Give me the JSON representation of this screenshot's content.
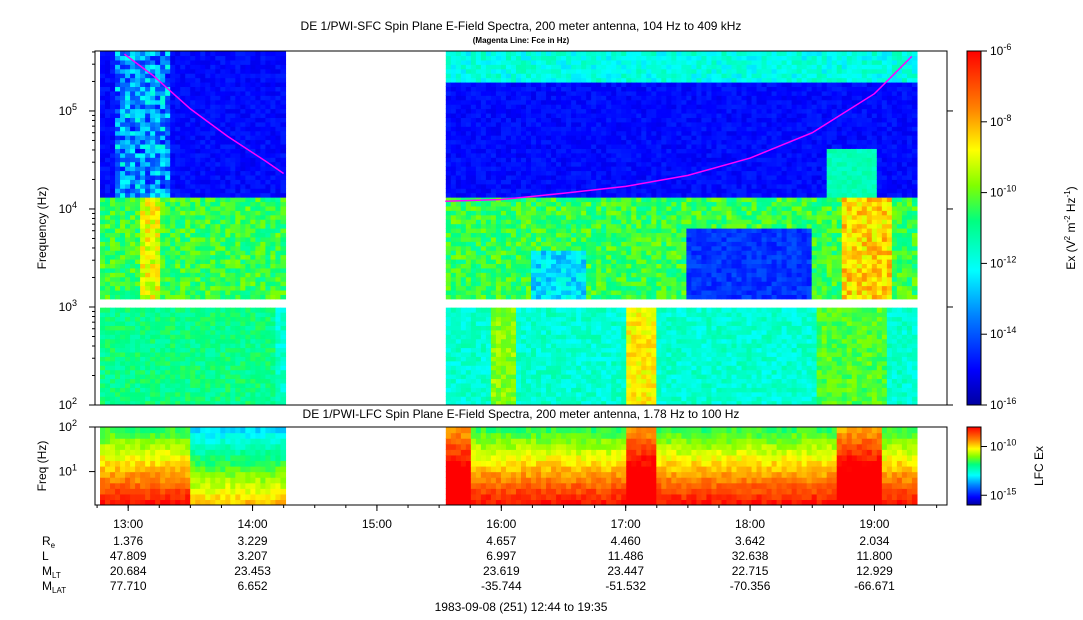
{
  "chart_data": [
    {
      "type": "heatmap",
      "title": "DE 1/PWI-SFC  Spin Plane E-Field Spectra, 200 meter antenna, 104 Hz to 409 kHz",
      "subtitle": "(Magenta Line: Fce in Hz)",
      "ylabel": "Frequency (Hz)",
      "yscale": "log",
      "ylim": [
        100,
        409000
      ],
      "y_ticks": [
        {
          "value": 100,
          "base": "10",
          "exp": "2"
        },
        {
          "value": 1000,
          "base": "10",
          "exp": "3"
        },
        {
          "value": 10000,
          "base": "10",
          "exp": "4"
        },
        {
          "value": 100000,
          "base": "10",
          "exp": "5"
        }
      ],
      "colorbar": {
        "label_prefix": "Ex (V",
        "label_sup1": "2",
        "label_mid": " m",
        "label_sup2": "-2",
        "label_mid2": " Hz",
        "label_sup3": "-1",
        "label_suffix": ")",
        "scale": "log",
        "range": [
          1e-16,
          1e-06
        ],
        "ticks": [
          {
            "value": 1e-06,
            "base": "10",
            "exp": "-6"
          },
          {
            "value": 1e-08,
            "base": "10",
            "exp": "-8"
          },
          {
            "value": 1e-10,
            "base": "10",
            "exp": "-10"
          },
          {
            "value": 1e-12,
            "base": "10",
            "exp": "-12"
          },
          {
            "value": 1e-14,
            "base": "10",
            "exp": "-14"
          },
          {
            "value": 1e-16,
            "base": "10",
            "exp": "-16"
          }
        ]
      },
      "data_gap": {
        "start_hours": 14.25,
        "end_hours": 15.55
      },
      "band_gap_hz": [
        1000,
        1200
      ],
      "fce_line": {
        "name": "Fce",
        "segments": [
          {
            "hours": [
              12.97,
              13.2,
              13.5,
              13.8,
              14.1,
              14.25
            ],
            "hz": [
              380000,
              230000,
              105000,
              55000,
              31000,
              23000
            ]
          },
          {
            "hours": [
              15.55,
              16.0,
              16.5,
              17.0,
              17.5,
              18.0,
              18.5,
              19.0,
              19.3
            ],
            "hz": [
              12000,
              12500,
              14500,
              17000,
              22000,
              33000,
              60000,
              150000,
              360000
            ]
          }
        ]
      }
    },
    {
      "type": "heatmap",
      "title": "DE 1/PWI-LFC  Spin Plane E-Field Spectra, 200 meter antenna, 1.78 Hz to 100 Hz",
      "ylabel": "Freq (Hz)",
      "yscale": "log",
      "ylim": [
        1.78,
        100
      ],
      "y_ticks": [
        {
          "value": 10,
          "base": "10",
          "exp": "1"
        },
        {
          "value": 100,
          "base": "10",
          "exp": "2"
        }
      ],
      "colorbar": {
        "label": "LFC Ex",
        "scale": "log",
        "range": [
          1e-16,
          1e-08
        ],
        "ticks": [
          {
            "value": 1e-10,
            "base": "10",
            "exp": "-10"
          },
          {
            "value": 1e-15,
            "base": "10",
            "exp": "-15"
          }
        ]
      },
      "data_gap": {
        "start_hours": 14.25,
        "end_hours": 15.55
      }
    }
  ],
  "time_axis": {
    "start_hours": 12.7333,
    "end_hours": 19.5833,
    "ticks": [
      {
        "hours": 13,
        "label": "13:00"
      },
      {
        "hours": 14,
        "label": "14:00"
      },
      {
        "hours": 15,
        "label": "15:00"
      },
      {
        "hours": 16,
        "label": "16:00"
      },
      {
        "hours": 17,
        "label": "17:00"
      },
      {
        "hours": 18,
        "label": "18:00"
      },
      {
        "hours": 19,
        "label": "19:00"
      }
    ]
  },
  "ephemeris": {
    "rows": [
      {
        "label": "R",
        "sub": "e",
        "values": [
          "1.376",
          "3.229",
          "",
          "4.657",
          "4.460",
          "3.642",
          "2.034"
        ]
      },
      {
        "label": "L",
        "sub": "",
        "values": [
          "47.809",
          "3.207",
          "",
          "6.997",
          "11.486",
          "32.638",
          "11.800"
        ]
      },
      {
        "label": "M",
        "sub": "LT",
        "values": [
          "20.684",
          "23.453",
          "",
          "23.619",
          "23.447",
          "22.715",
          "12.929"
        ]
      },
      {
        "label": "M",
        "sub": "LAT",
        "values": [
          "77.710",
          "6.652",
          "",
          "-35.744",
          "-51.532",
          "-70.356",
          "-66.671"
        ]
      }
    ]
  },
  "footer": "1983-09-08 (251) 12:44 to 19:35"
}
